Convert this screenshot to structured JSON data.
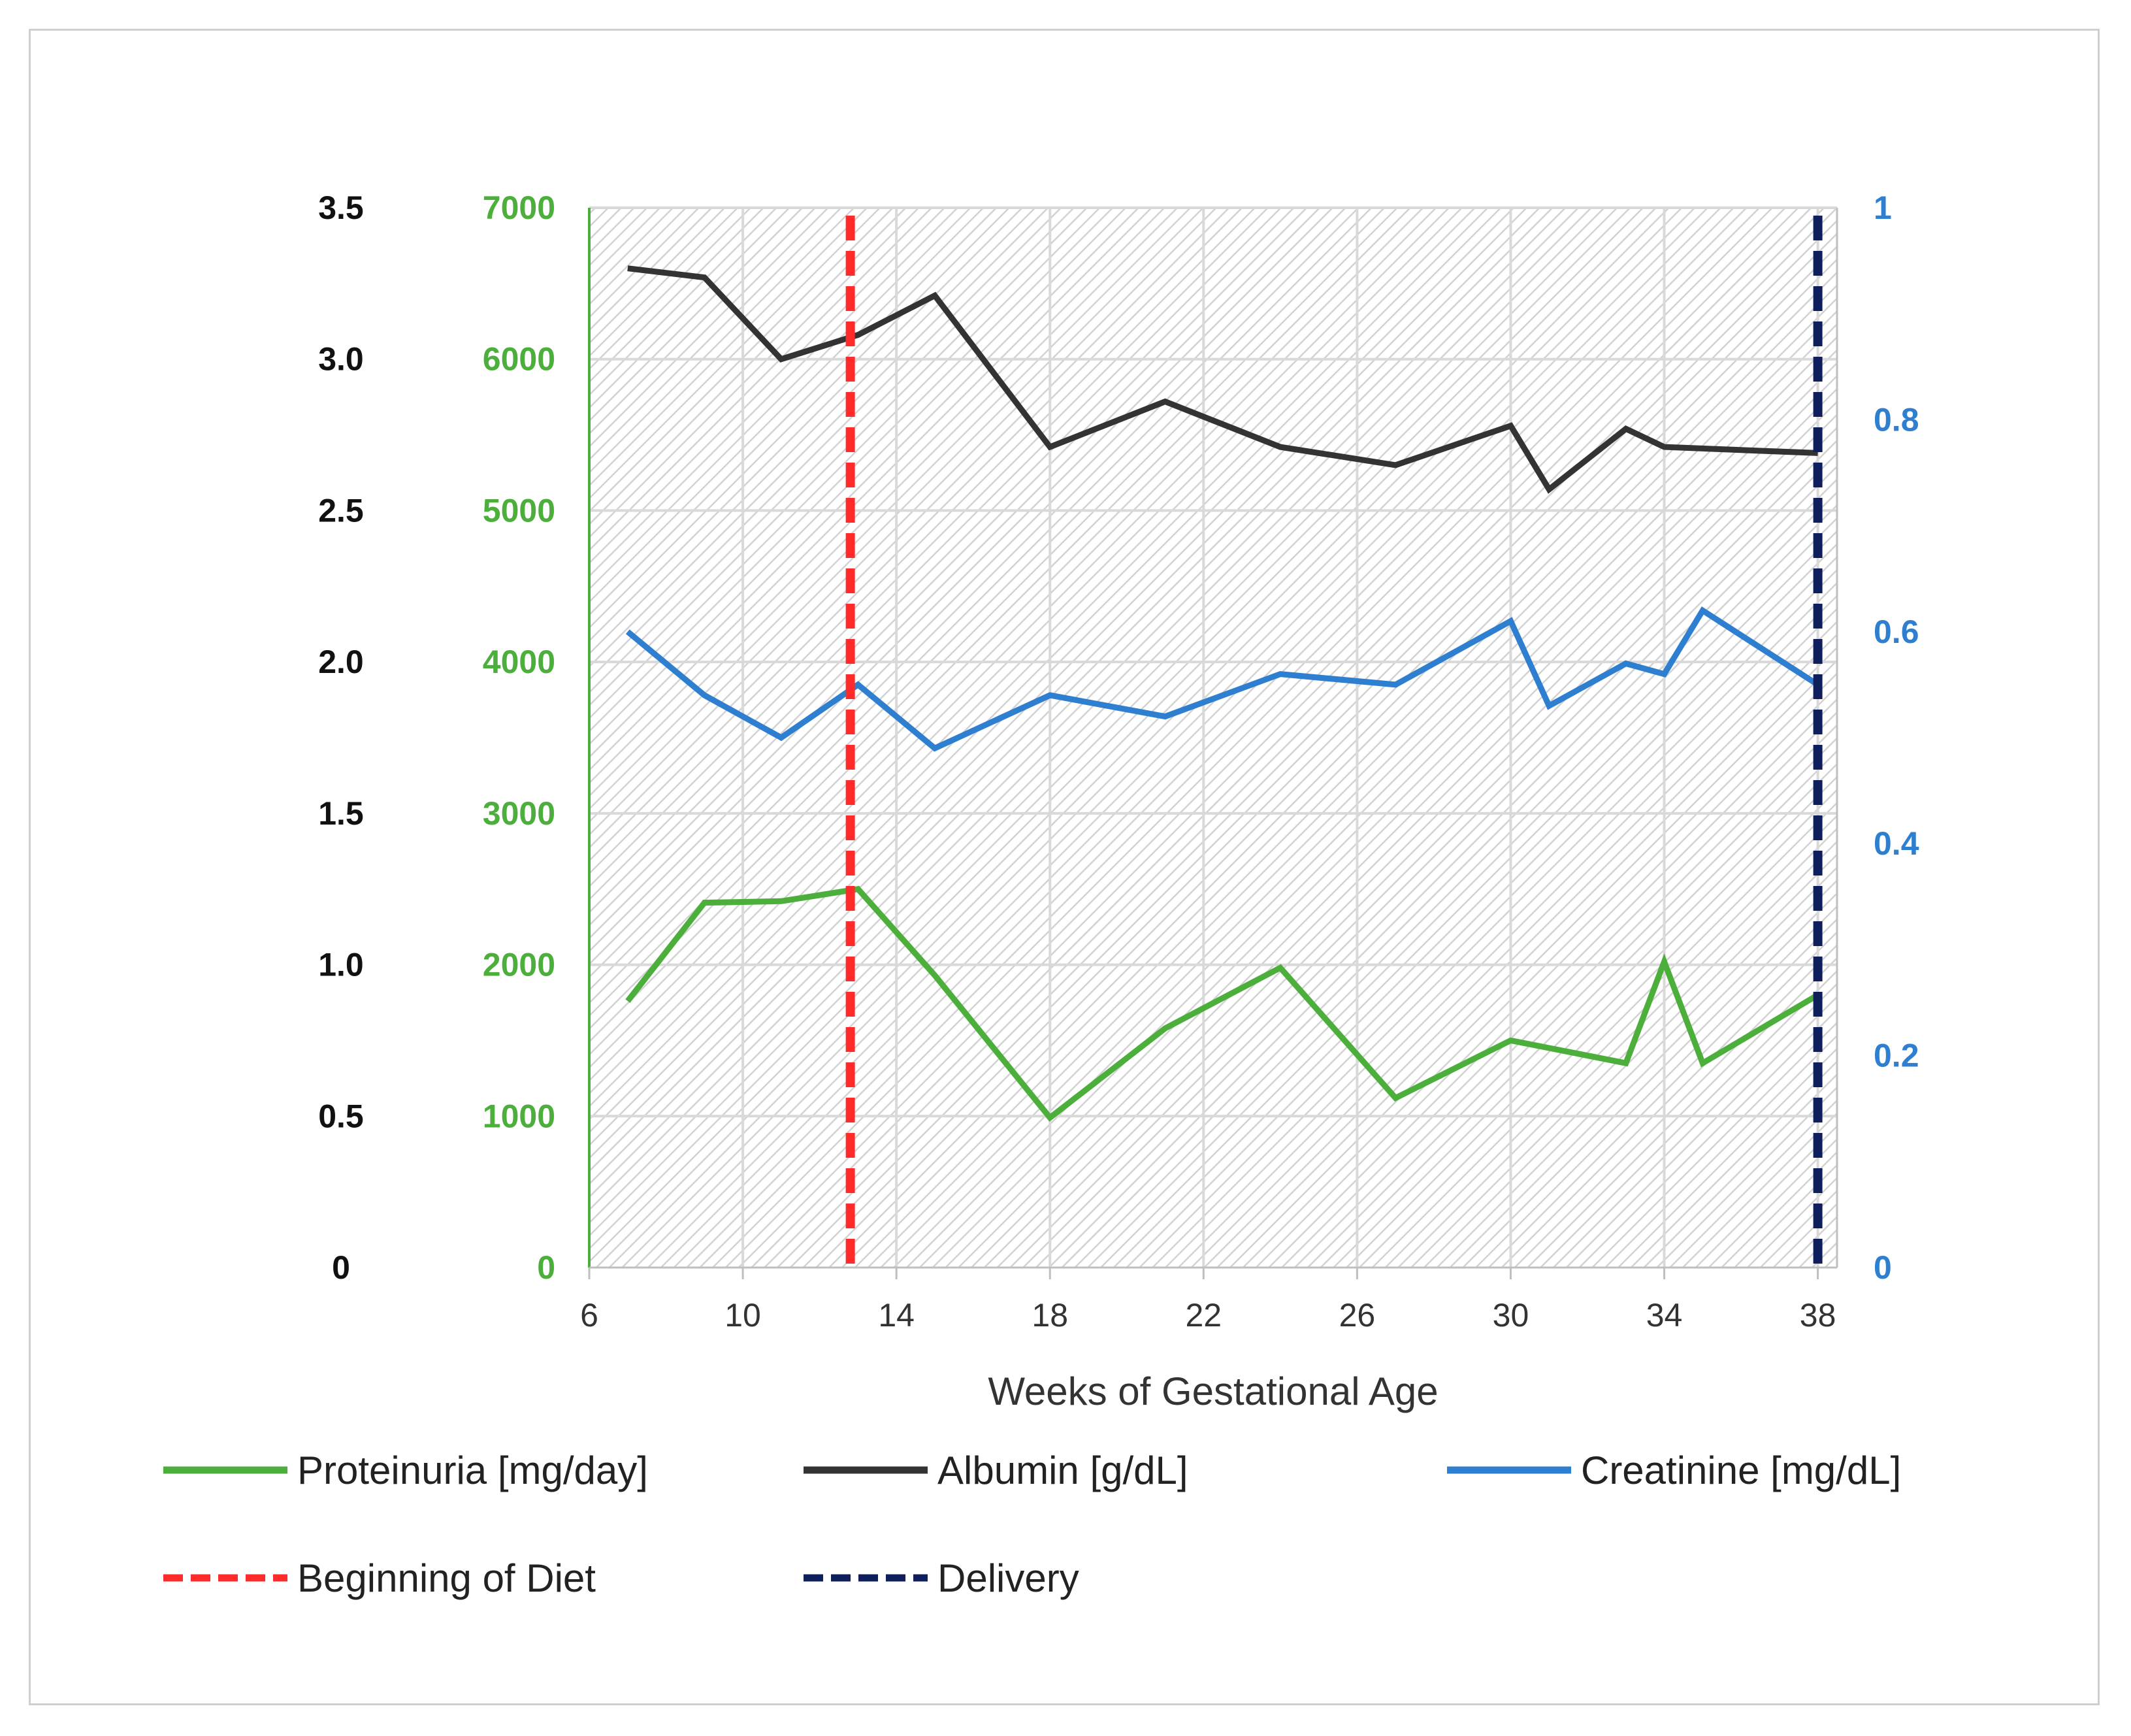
{
  "chart_data": {
    "type": "line",
    "title": "",
    "xlabel": "Weeks of Gestational Age",
    "xlim": [
      6,
      38.5
    ],
    "x_ticks": [
      "6",
      "10",
      "14",
      "18",
      "22",
      "26",
      "30",
      "34",
      "38"
    ],
    "axes": {
      "albumin_axis": {
        "range": [
          0,
          3.5
        ],
        "ticks": [
          "0",
          "0.5",
          "1.0",
          "1.5",
          "2.0",
          "2.5",
          "3.0",
          "3.5"
        ],
        "color": "#111111"
      },
      "proteinuria_axis": {
        "range": [
          0,
          7000
        ],
        "ticks": [
          "0",
          "1000",
          "2000",
          "3000",
          "4000",
          "5000",
          "6000",
          "7000"
        ],
        "color": "#4caf3c"
      },
      "creatinine_axis": {
        "range": [
          0,
          1
        ],
        "ticks": [
          "0",
          "0.2",
          "0.4",
          "0.6",
          "0.8",
          "1"
        ],
        "color": "#2f7fd0"
      }
    },
    "series": [
      {
        "name": "Proteinuria [mg/day]",
        "axis": "proteinuria_axis",
        "color": "#4caf3c",
        "x": [
          7,
          9,
          11,
          13,
          15,
          18,
          21,
          24,
          27,
          30,
          33,
          34,
          35,
          38
        ],
        "values": [
          1760,
          2410,
          2420,
          2500,
          1930,
          990,
          1580,
          1980,
          1120,
          1500,
          1350,
          2020,
          1350,
          1800
        ]
      },
      {
        "name": "Albumin [g/dL]",
        "axis": "albumin_axis",
        "color": "#333333",
        "x": [
          7,
          9,
          11,
          13,
          15,
          18,
          21,
          24,
          27,
          30,
          31,
          33,
          34,
          38
        ],
        "values": [
          3.3,
          3.27,
          3.0,
          3.08,
          3.21,
          2.71,
          2.86,
          2.71,
          2.65,
          2.78,
          2.57,
          2.77,
          2.71,
          2.69
        ]
      },
      {
        "name": "Creatinine [mg/dL]",
        "axis": "creatinine_axis",
        "color": "#2f7fd0",
        "x": [
          7,
          9,
          11,
          13,
          15,
          18,
          21,
          24,
          27,
          30,
          31,
          33,
          34,
          35,
          38
        ],
        "values": [
          0.6,
          0.54,
          0.5,
          0.55,
          0.49,
          0.54,
          0.52,
          0.56,
          0.55,
          0.61,
          0.53,
          0.57,
          0.56,
          0.62,
          0.55
        ]
      }
    ],
    "markers": [
      {
        "name": "Beginning of Diet",
        "x": 12.8,
        "color": "#ff2a2a",
        "style": "dashed"
      },
      {
        "name": "Delivery",
        "x": 38,
        "color": "#0f1f5c",
        "style": "dashed"
      }
    ],
    "legend": [
      {
        "label": "Proteinuria [mg/day]",
        "color": "#4caf3c",
        "style": "solid"
      },
      {
        "label": "Albumin [g/dL]",
        "color": "#333333",
        "style": "solid"
      },
      {
        "label": "Creatinine [mg/dL]",
        "color": "#2f7fd0",
        "style": "solid"
      },
      {
        "label": "Beginning of Diet",
        "color": "#ff2a2a",
        "style": "dashed"
      },
      {
        "label": "Delivery",
        "color": "#0f1f5c",
        "style": "dashed"
      }
    ],
    "legend_position": "bottom",
    "grid": true
  }
}
